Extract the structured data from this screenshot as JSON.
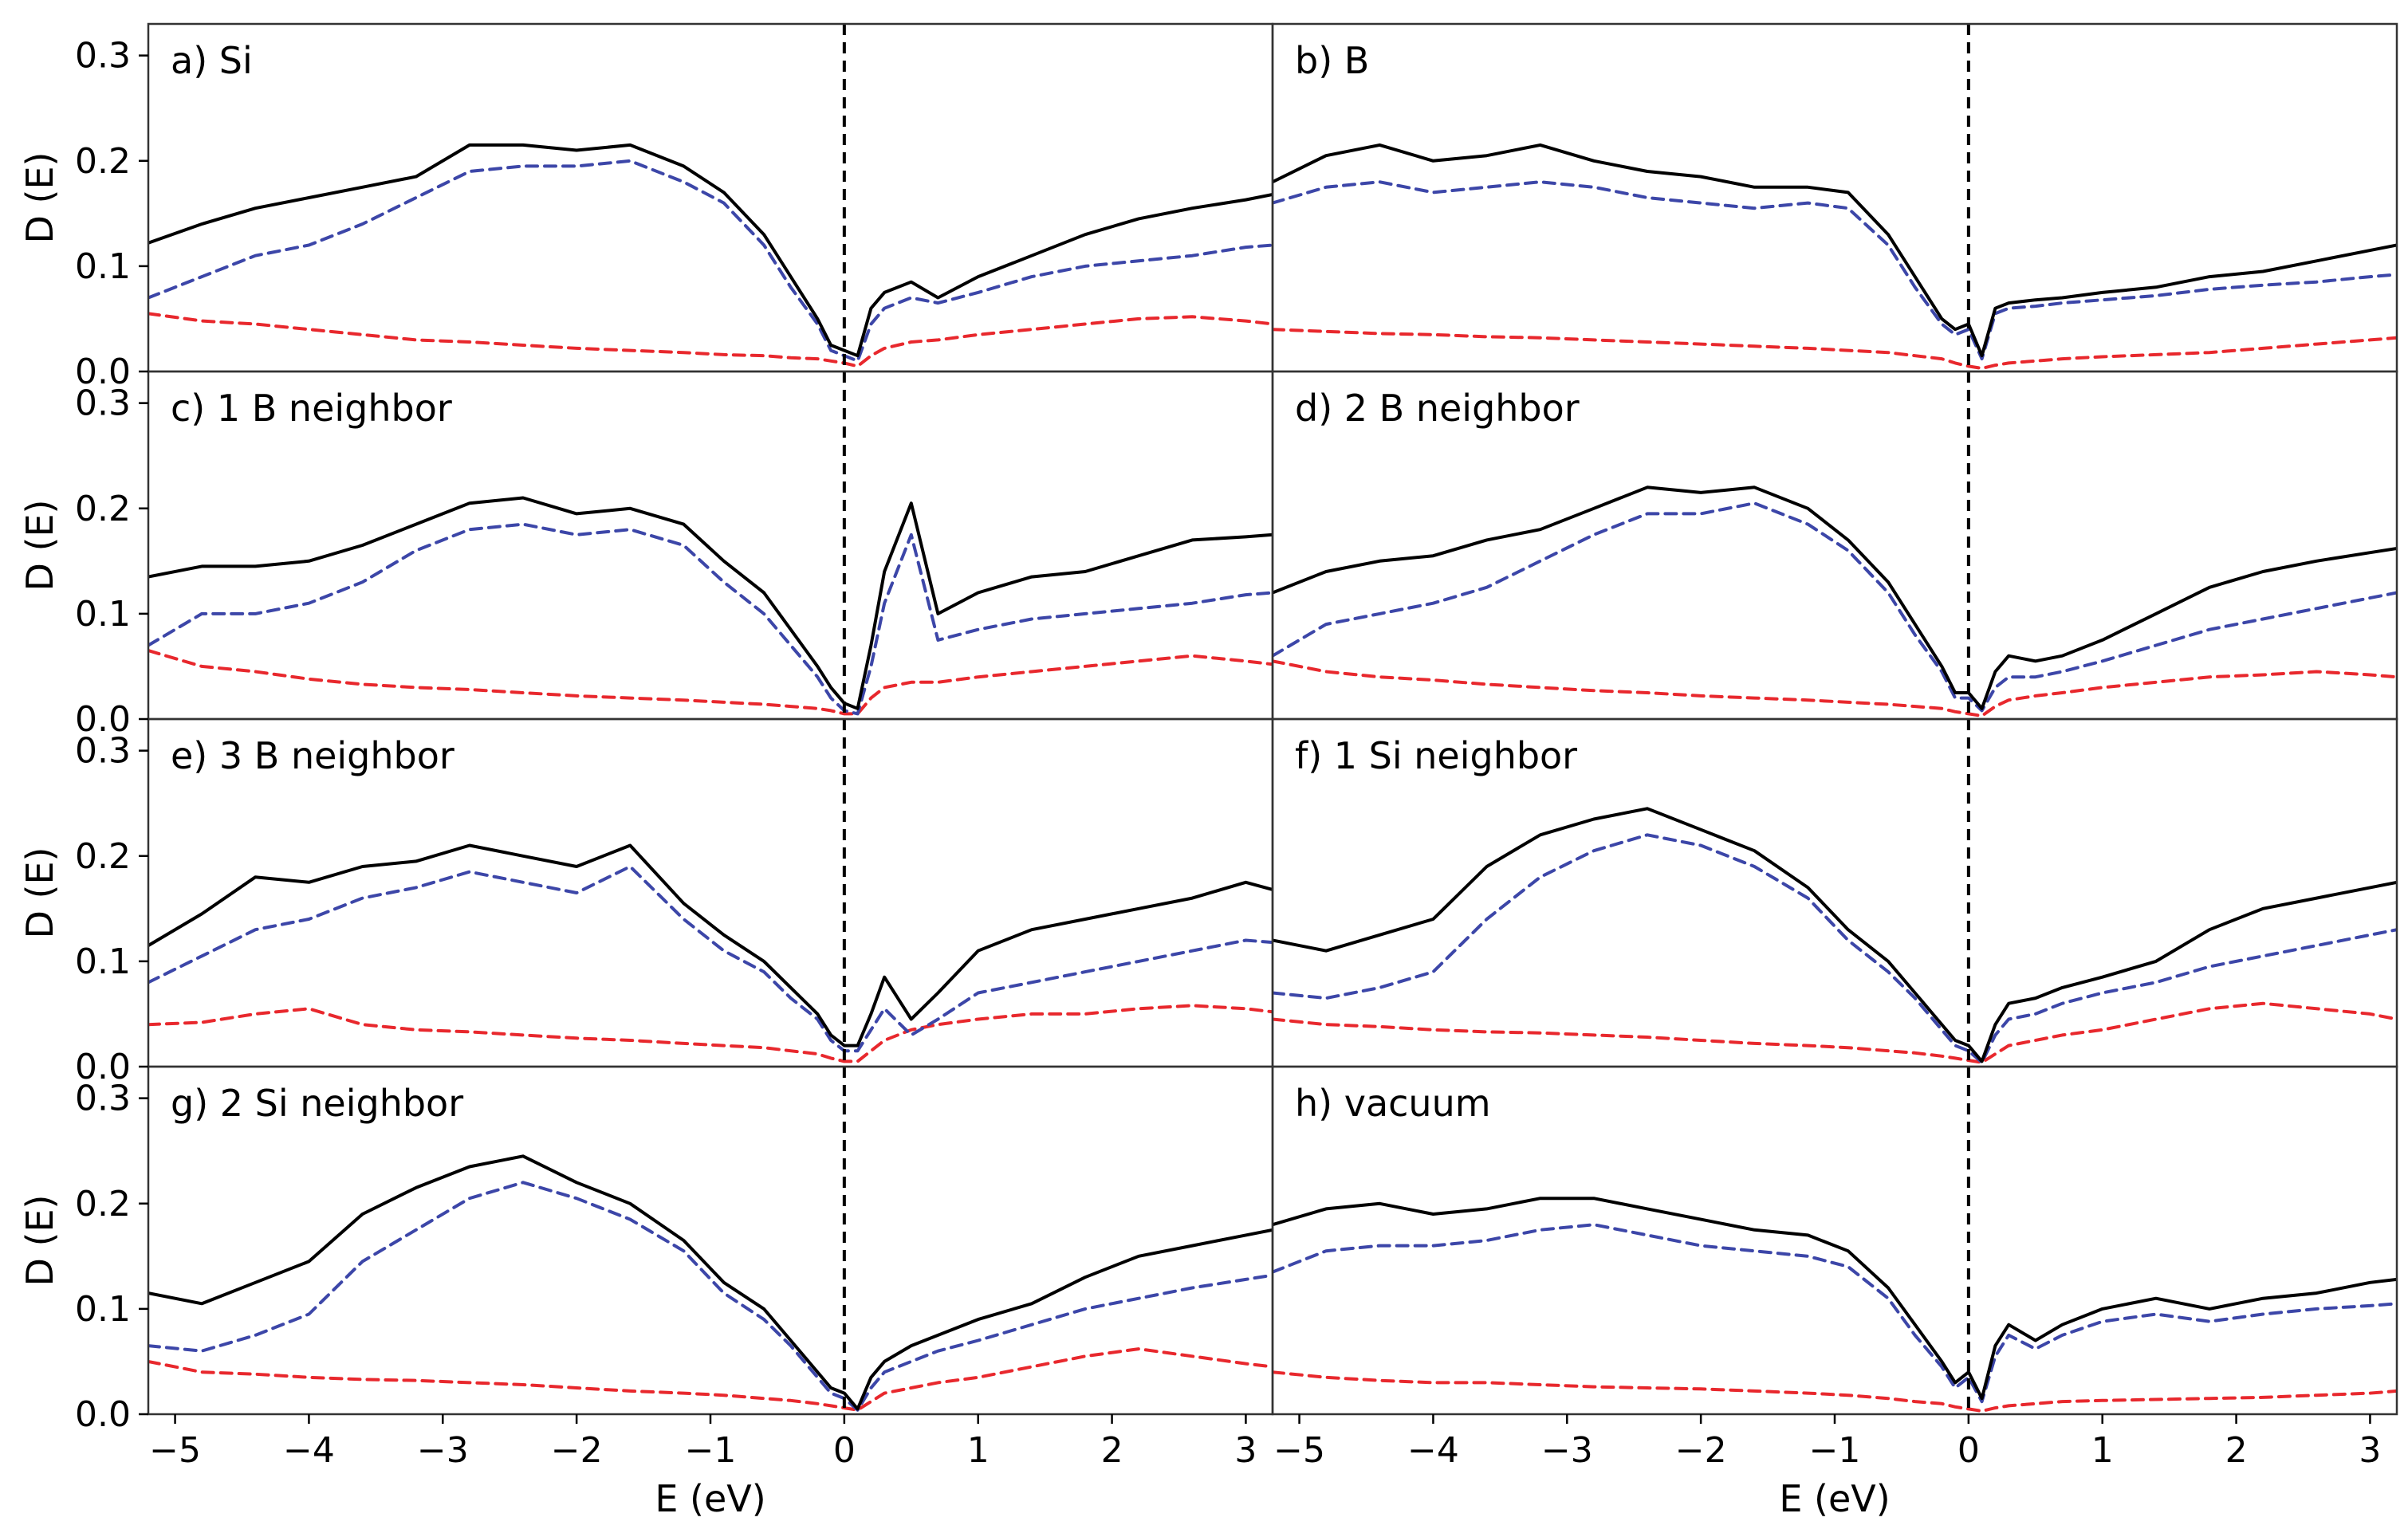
{
  "chart_data": {
    "type": "line",
    "layout": "4 rows x 2 columns, shared axes",
    "xlabel": "E (eV)",
    "ylabel": "D (E)",
    "xlim": [
      -5.2,
      3.2
    ],
    "ylim": [
      0.0,
      0.33
    ],
    "xticks": [
      -5,
      -4,
      -3,
      -2,
      -1,
      0,
      1,
      2,
      3
    ],
    "xtick_labels": [
      "−5",
      "−4",
      "−3",
      "−2",
      "−1",
      "0",
      "1",
      "2",
      "3"
    ],
    "yticks": [
      0.0,
      0.1,
      0.2,
      0.3
    ],
    "ytick_labels": [
      "0.0",
      "0.1",
      "0.2",
      "0.3"
    ],
    "fermi_level_marker": {
      "x": 0,
      "style": "dashed",
      "color": "#000000"
    },
    "series_styles": [
      {
        "key": "total",
        "color": "#000000",
        "dash": "solid"
      },
      {
        "key": "p",
        "color": "#3c46a8",
        "dash": "dashed"
      },
      {
        "key": "s",
        "color": "#e8282d",
        "dash": "dashed"
      }
    ],
    "x": [
      -5.2,
      -4.8,
      -4.4,
      -4.0,
      -3.6,
      -3.2,
      -2.8,
      -2.4,
      -2.0,
      -1.6,
      -1.2,
      -0.9,
      -0.6,
      -0.4,
      -0.2,
      -0.1,
      0.0,
      0.1,
      0.2,
      0.3,
      0.5,
      0.7,
      1.0,
      1.4,
      1.8,
      2.2,
      2.6,
      3.0,
      3.2
    ],
    "panels": [
      {
        "label": "a) Si",
        "total": [
          0.122,
          0.14,
          0.155,
          0.165,
          0.175,
          0.185,
          0.215,
          0.215,
          0.21,
          0.215,
          0.195,
          0.17,
          0.13,
          0.09,
          0.05,
          0.025,
          0.02,
          0.015,
          0.06,
          0.075,
          0.085,
          0.07,
          0.09,
          0.11,
          0.13,
          0.145,
          0.155,
          0.163,
          0.168
        ],
        "p": [
          0.07,
          0.09,
          0.11,
          0.12,
          0.14,
          0.165,
          0.19,
          0.195,
          0.195,
          0.2,
          0.18,
          0.16,
          0.12,
          0.08,
          0.045,
          0.02,
          0.015,
          0.01,
          0.045,
          0.06,
          0.07,
          0.065,
          0.075,
          0.09,
          0.1,
          0.105,
          0.11,
          0.118,
          0.12
        ],
        "s": [
          0.055,
          0.048,
          0.045,
          0.04,
          0.035,
          0.03,
          0.028,
          0.025,
          0.022,
          0.02,
          0.018,
          0.016,
          0.015,
          0.013,
          0.012,
          0.01,
          0.008,
          0.005,
          0.015,
          0.022,
          0.028,
          0.03,
          0.035,
          0.04,
          0.045,
          0.05,
          0.052,
          0.048,
          0.045
        ]
      },
      {
        "label": "b) B",
        "total": [
          0.18,
          0.205,
          0.215,
          0.2,
          0.205,
          0.215,
          0.2,
          0.19,
          0.185,
          0.175,
          0.175,
          0.17,
          0.13,
          0.09,
          0.05,
          0.04,
          0.045,
          0.015,
          0.06,
          0.065,
          0.068,
          0.07,
          0.075,
          0.08,
          0.09,
          0.095,
          0.105,
          0.115,
          0.12
        ],
        "p": [
          0.16,
          0.175,
          0.18,
          0.17,
          0.175,
          0.18,
          0.175,
          0.165,
          0.16,
          0.155,
          0.16,
          0.155,
          0.12,
          0.08,
          0.045,
          0.035,
          0.04,
          0.012,
          0.055,
          0.06,
          0.062,
          0.065,
          0.068,
          0.072,
          0.078,
          0.082,
          0.085,
          0.09,
          0.092
        ],
        "s": [
          0.04,
          0.038,
          0.036,
          0.035,
          0.033,
          0.032,
          0.03,
          0.028,
          0.026,
          0.024,
          0.022,
          0.02,
          0.018,
          0.015,
          0.012,
          0.008,
          0.005,
          0.003,
          0.006,
          0.008,
          0.01,
          0.012,
          0.014,
          0.016,
          0.018,
          0.022,
          0.026,
          0.03,
          0.032
        ]
      },
      {
        "label": "c) 1 B neighbor",
        "total": [
          0.135,
          0.145,
          0.145,
          0.15,
          0.165,
          0.185,
          0.205,
          0.21,
          0.195,
          0.2,
          0.185,
          0.15,
          0.12,
          0.085,
          0.05,
          0.03,
          0.015,
          0.01,
          0.07,
          0.14,
          0.205,
          0.1,
          0.12,
          0.135,
          0.14,
          0.155,
          0.17,
          0.173,
          0.175
        ],
        "p": [
          0.07,
          0.1,
          0.1,
          0.11,
          0.13,
          0.16,
          0.18,
          0.185,
          0.175,
          0.18,
          0.165,
          0.13,
          0.1,
          0.07,
          0.04,
          0.02,
          0.008,
          0.005,
          0.05,
          0.11,
          0.175,
          0.075,
          0.085,
          0.095,
          0.1,
          0.105,
          0.11,
          0.118,
          0.12
        ],
        "s": [
          0.065,
          0.05,
          0.045,
          0.038,
          0.033,
          0.03,
          0.028,
          0.025,
          0.022,
          0.02,
          0.018,
          0.016,
          0.014,
          0.012,
          0.01,
          0.008,
          0.005,
          0.005,
          0.02,
          0.03,
          0.035,
          0.035,
          0.04,
          0.045,
          0.05,
          0.055,
          0.06,
          0.055,
          0.052
        ]
      },
      {
        "label": "d) 2 B neighbor",
        "total": [
          0.12,
          0.14,
          0.15,
          0.155,
          0.17,
          0.18,
          0.2,
          0.22,
          0.215,
          0.22,
          0.2,
          0.17,
          0.13,
          0.09,
          0.05,
          0.025,
          0.025,
          0.01,
          0.045,
          0.06,
          0.055,
          0.06,
          0.075,
          0.1,
          0.125,
          0.14,
          0.15,
          0.158,
          0.162
        ],
        "p": [
          0.06,
          0.09,
          0.1,
          0.11,
          0.125,
          0.15,
          0.175,
          0.195,
          0.195,
          0.205,
          0.185,
          0.16,
          0.12,
          0.08,
          0.045,
          0.02,
          0.02,
          0.008,
          0.03,
          0.04,
          0.04,
          0.045,
          0.055,
          0.07,
          0.085,
          0.095,
          0.105,
          0.115,
          0.12
        ],
        "s": [
          0.055,
          0.045,
          0.04,
          0.037,
          0.033,
          0.03,
          0.027,
          0.025,
          0.022,
          0.02,
          0.018,
          0.016,
          0.014,
          0.012,
          0.01,
          0.007,
          0.005,
          0.003,
          0.012,
          0.018,
          0.022,
          0.025,
          0.03,
          0.035,
          0.04,
          0.042,
          0.045,
          0.042,
          0.04
        ]
      },
      {
        "label": "e) 3 B neighbor",
        "total": [
          0.115,
          0.145,
          0.18,
          0.175,
          0.19,
          0.195,
          0.21,
          0.2,
          0.19,
          0.21,
          0.155,
          0.125,
          0.1,
          0.075,
          0.05,
          0.03,
          0.02,
          0.02,
          0.05,
          0.085,
          0.045,
          0.07,
          0.11,
          0.13,
          0.14,
          0.15,
          0.16,
          0.175,
          0.168
        ],
        "p": [
          0.08,
          0.105,
          0.13,
          0.14,
          0.16,
          0.17,
          0.185,
          0.175,
          0.165,
          0.19,
          0.14,
          0.11,
          0.09,
          0.065,
          0.045,
          0.025,
          0.015,
          0.015,
          0.035,
          0.055,
          0.03,
          0.045,
          0.07,
          0.08,
          0.09,
          0.1,
          0.11,
          0.12,
          0.118
        ],
        "s": [
          0.04,
          0.042,
          0.05,
          0.055,
          0.04,
          0.035,
          0.033,
          0.03,
          0.027,
          0.025,
          0.022,
          0.02,
          0.018,
          0.015,
          0.012,
          0.008,
          0.005,
          0.005,
          0.015,
          0.025,
          0.035,
          0.04,
          0.045,
          0.05,
          0.05,
          0.055,
          0.058,
          0.055,
          0.052
        ]
      },
      {
        "label": "f) 1 Si neighbor",
        "total": [
          0.12,
          0.11,
          0.125,
          0.14,
          0.19,
          0.22,
          0.235,
          0.245,
          0.225,
          0.205,
          0.17,
          0.13,
          0.1,
          0.07,
          0.04,
          0.025,
          0.02,
          0.005,
          0.04,
          0.06,
          0.065,
          0.075,
          0.085,
          0.1,
          0.13,
          0.15,
          0.16,
          0.17,
          0.175
        ],
        "p": [
          0.07,
          0.065,
          0.075,
          0.09,
          0.14,
          0.18,
          0.205,
          0.22,
          0.21,
          0.19,
          0.16,
          0.12,
          0.09,
          0.065,
          0.035,
          0.02,
          0.015,
          0.004,
          0.03,
          0.045,
          0.05,
          0.06,
          0.07,
          0.08,
          0.095,
          0.105,
          0.115,
          0.125,
          0.13
        ],
        "s": [
          0.045,
          0.04,
          0.038,
          0.035,
          0.033,
          0.032,
          0.03,
          0.028,
          0.025,
          0.022,
          0.02,
          0.018,
          0.015,
          0.013,
          0.01,
          0.008,
          0.006,
          0.004,
          0.012,
          0.02,
          0.025,
          0.03,
          0.035,
          0.045,
          0.055,
          0.06,
          0.055,
          0.05,
          0.045
        ]
      },
      {
        "label": "g) 2 Si neighbor",
        "total": [
          0.115,
          0.105,
          0.125,
          0.145,
          0.19,
          0.215,
          0.235,
          0.245,
          0.22,
          0.2,
          0.165,
          0.125,
          0.1,
          0.07,
          0.04,
          0.025,
          0.02,
          0.005,
          0.035,
          0.05,
          0.065,
          0.075,
          0.09,
          0.105,
          0.13,
          0.15,
          0.16,
          0.17,
          0.175
        ],
        "p": [
          0.065,
          0.06,
          0.075,
          0.095,
          0.145,
          0.175,
          0.205,
          0.22,
          0.205,
          0.185,
          0.155,
          0.115,
          0.09,
          0.065,
          0.035,
          0.02,
          0.015,
          0.004,
          0.025,
          0.04,
          0.05,
          0.06,
          0.07,
          0.085,
          0.1,
          0.11,
          0.12,
          0.128,
          0.132
        ],
        "s": [
          0.05,
          0.04,
          0.038,
          0.035,
          0.033,
          0.032,
          0.03,
          0.028,
          0.025,
          0.022,
          0.02,
          0.018,
          0.015,
          0.013,
          0.01,
          0.008,
          0.006,
          0.004,
          0.012,
          0.02,
          0.025,
          0.03,
          0.035,
          0.045,
          0.055,
          0.062,
          0.055,
          0.048,
          0.045
        ]
      },
      {
        "label": "h) vacuum",
        "total": [
          0.18,
          0.195,
          0.2,
          0.19,
          0.195,
          0.205,
          0.205,
          0.195,
          0.185,
          0.175,
          0.17,
          0.155,
          0.12,
          0.085,
          0.05,
          0.03,
          0.04,
          0.015,
          0.065,
          0.085,
          0.07,
          0.085,
          0.1,
          0.11,
          0.1,
          0.11,
          0.115,
          0.125,
          0.128
        ],
        "p": [
          0.135,
          0.155,
          0.16,
          0.16,
          0.165,
          0.175,
          0.18,
          0.17,
          0.16,
          0.155,
          0.15,
          0.14,
          0.11,
          0.075,
          0.045,
          0.025,
          0.035,
          0.012,
          0.055,
          0.075,
          0.062,
          0.075,
          0.088,
          0.095,
          0.088,
          0.095,
          0.1,
          0.103,
          0.105
        ],
        "s": [
          0.04,
          0.035,
          0.032,
          0.03,
          0.03,
          0.028,
          0.026,
          0.025,
          0.024,
          0.022,
          0.02,
          0.018,
          0.015,
          0.012,
          0.01,
          0.007,
          0.005,
          0.003,
          0.006,
          0.008,
          0.01,
          0.012,
          0.013,
          0.014,
          0.015,
          0.016,
          0.018,
          0.02,
          0.022
        ]
      }
    ]
  }
}
